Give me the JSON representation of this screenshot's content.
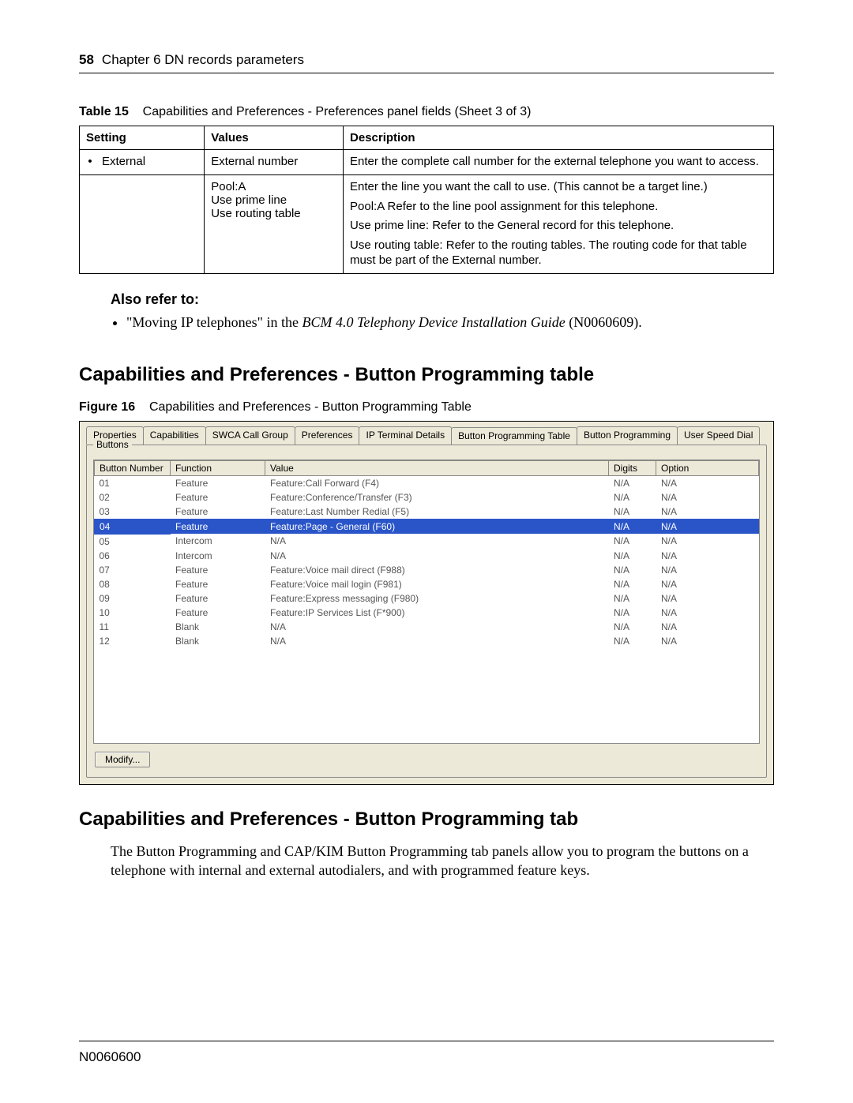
{
  "header": {
    "page_number": "58",
    "chapter": "Chapter 6  DN records parameters"
  },
  "table15": {
    "caption_label": "Table 15",
    "caption_text": "Capabilities and Preferences - Preferences panel fields (Sheet 3 of 3)",
    "columns": [
      "Setting",
      "Values",
      "Description"
    ],
    "col_widths": [
      "18%",
      "20%",
      "62%"
    ],
    "rows": [
      {
        "setting_bullet": "•",
        "setting": "External",
        "values": "External number",
        "desc": [
          "Enter the complete call number for the external telephone you want to access."
        ]
      },
      {
        "setting_bullet": "",
        "setting": "",
        "values_lines": [
          "Pool:A",
          "Use prime line",
          "Use routing table"
        ],
        "desc": [
          "Enter the line you want the call to use. (This cannot be a target line.)",
          "Pool:A Refer to the line pool assignment for this telephone.",
          "Use prime line: Refer to the General record for this telephone.",
          "Use routing table: Refer to the routing tables. The routing code for that table must be part of the External number."
        ]
      }
    ]
  },
  "also_refer": {
    "heading": "Also refer to:",
    "item_prefix": "\"Moving IP telephones\" in the ",
    "item_italic": "BCM 4.0 Telephony Device Installation Guide",
    "item_suffix": " (N0060609)."
  },
  "section1_heading": "Capabilities and Preferences - Button Programming table",
  "figure16": {
    "caption_label": "Figure 16",
    "caption_text": "Capabilities and Preferences - Button Programming Table"
  },
  "screenshot": {
    "bg_color": "#ece9d8",
    "selection_color": "#2a55c8",
    "tabs": [
      {
        "label": "Properties",
        "active": false
      },
      {
        "label": "Capabilities",
        "active": false
      },
      {
        "label": "SWCA Call Group",
        "active": false
      },
      {
        "label": "Preferences",
        "active": false
      },
      {
        "label": "IP Terminal Details",
        "active": false
      },
      {
        "label": "Button Programming Table",
        "active": true
      },
      {
        "label": "Button Programming",
        "active": false
      },
      {
        "label": "User Speed Dial",
        "active": false
      }
    ],
    "group_label": "Buttons",
    "columns": [
      "Button Number",
      "Function",
      "Value",
      "Digits",
      "Option"
    ],
    "rows": [
      {
        "bn": "01",
        "fn": "Feature",
        "val": "Feature:Call Forward (F4)",
        "dg": "N/A",
        "op": "N/A",
        "sel": false
      },
      {
        "bn": "02",
        "fn": "Feature",
        "val": "Feature:Conference/Transfer (F3)",
        "dg": "N/A",
        "op": "N/A",
        "sel": false
      },
      {
        "bn": "03",
        "fn": "Feature",
        "val": "Feature:Last Number Redial (F5)",
        "dg": "N/A",
        "op": "N/A",
        "sel": false
      },
      {
        "bn": "04",
        "fn": "Feature",
        "val": "Feature:Page - General (F60)",
        "dg": "N/A",
        "op": "N/A",
        "sel": true
      },
      {
        "bn": "05",
        "fn": "Intercom",
        "val": "N/A",
        "dg": "N/A",
        "op": "N/A",
        "sel": false
      },
      {
        "bn": "06",
        "fn": "Intercom",
        "val": "N/A",
        "dg": "N/A",
        "op": "N/A",
        "sel": false
      },
      {
        "bn": "07",
        "fn": "Feature",
        "val": "Feature:Voice mail direct (F988)",
        "dg": "N/A",
        "op": "N/A",
        "sel": false
      },
      {
        "bn": "08",
        "fn": "Feature",
        "val": "Feature:Voice mail login (F981)",
        "dg": "N/A",
        "op": "N/A",
        "sel": false
      },
      {
        "bn": "09",
        "fn": "Feature",
        "val": "Feature:Express messaging (F980)",
        "dg": "N/A",
        "op": "N/A",
        "sel": false
      },
      {
        "bn": "10",
        "fn": "Feature",
        "val": "Feature:IP Services List (F*900)",
        "dg": "N/A",
        "op": "N/A",
        "sel": false
      },
      {
        "bn": "11",
        "fn": "Blank",
        "val": "N/A",
        "dg": "N/A",
        "op": "N/A",
        "sel": false
      },
      {
        "bn": "12",
        "fn": "Blank",
        "val": "N/A",
        "dg": "N/A",
        "op": "N/A",
        "sel": false
      }
    ],
    "modify_label": "Modify..."
  },
  "section2_heading": "Capabilities and Preferences - Button Programming tab",
  "body_para": "The Button Programming and CAP/KIM Button Programming tab panels allow you to program the buttons on a telephone with internal and external autodialers, and with programmed feature keys.",
  "footer_id": "N0060600"
}
